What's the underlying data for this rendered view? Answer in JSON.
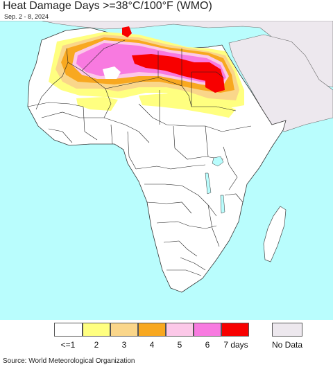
{
  "header": {
    "title": "Heat Damage Days >=38°C/100°F (WMO)",
    "subtitle": "Sep. 2 - 8, 2024"
  },
  "legend": {
    "items": [
      {
        "label": "<=1",
        "color": "#ffffff"
      },
      {
        "label": "2",
        "color": "#ffff80"
      },
      {
        "label": "3",
        "color": "#fad68a"
      },
      {
        "label": "4",
        "color": "#f8a820"
      },
      {
        "label": "5",
        "color": "#fcc8e8"
      },
      {
        "label": "6",
        "color": "#f87ae0"
      },
      {
        "label": "7 days",
        "color": "#f80000"
      }
    ],
    "no_data": {
      "label": "No Data",
      "color": "#ede8ee"
    }
  },
  "colors": {
    "ocean": "#b9fdfd",
    "no_data_land": "#ede8ee",
    "land": "#ffffff",
    "borders": "#222222"
  },
  "footer": {
    "source": "Source: World Meteorological Organization"
  }
}
